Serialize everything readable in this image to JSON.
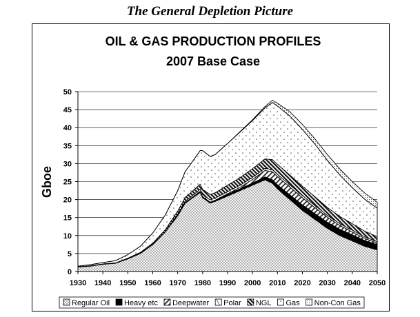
{
  "caption": "The General Depletion Picture",
  "chart_data": {
    "type": "area",
    "stacked": true,
    "title": "OIL & GAS PRODUCTION PROFILES",
    "subtitle": "2007 Base Case",
    "xlabel": "",
    "ylabel": "Gboe",
    "xlim": [
      1930,
      2050
    ],
    "ylim": [
      0,
      50
    ],
    "x_ticks": [
      "1930",
      "1940",
      "1950",
      "1960",
      "1970",
      "1980",
      "1990",
      "2000",
      "2010",
      "2020",
      "2030",
      "2040",
      "2050"
    ],
    "y_ticks": [
      "0",
      "5",
      "10",
      "15",
      "20",
      "25",
      "30",
      "35",
      "40",
      "45",
      "50"
    ],
    "grid": "horizontal",
    "legend_position": "bottom",
    "x": [
      1930,
      1935,
      1940,
      1945,
      1950,
      1955,
      1960,
      1965,
      1970,
      1973,
      1975,
      1979,
      1980,
      1983,
      1985,
      1990,
      1995,
      2000,
      2005,
      2008,
      2010,
      2015,
      2020,
      2025,
      2030,
      2035,
      2040,
      2045,
      2050
    ],
    "series": [
      {
        "name": "Regular Oil",
        "pattern": "dots",
        "values": [
          1.2,
          1.5,
          2.0,
          2.3,
          3.5,
          5.0,
          7.5,
          11.0,
          15.5,
          19.0,
          20.0,
          22.0,
          20.5,
          19.0,
          19.5,
          21.0,
          22.5,
          24.0,
          25.5,
          24.5,
          23.0,
          20.0,
          17.0,
          14.5,
          12.0,
          10.0,
          8.5,
          7.0,
          6.0
        ]
      },
      {
        "name": "Heavy etc",
        "pattern": "solid-black",
        "values": [
          0.1,
          0.1,
          0.1,
          0.1,
          0.1,
          0.1,
          0.1,
          0.1,
          0.2,
          0.2,
          0.2,
          0.3,
          0.3,
          0.3,
          0.3,
          0.4,
          0.5,
          0.6,
          0.8,
          1.0,
          1.1,
          1.3,
          1.5,
          1.6,
          1.7,
          1.7,
          1.7,
          1.6,
          1.5
        ]
      },
      {
        "name": "Deepwater",
        "pattern": "hatch",
        "values": [
          0,
          0,
          0,
          0,
          0,
          0,
          0,
          0,
          0,
          0,
          0,
          0,
          0,
          0,
          0,
          0.2,
          0.4,
          1.0,
          1.8,
          2.2,
          2.3,
          2.2,
          2.0,
          1.7,
          1.4,
          1.1,
          0.8,
          0.6,
          0.4
        ]
      },
      {
        "name": "Polar",
        "pattern": "light-hatch",
        "values": [
          0,
          0,
          0,
          0,
          0,
          0,
          0,
          0,
          0.2,
          0.3,
          0.4,
          0.6,
          0.6,
          0.6,
          0.6,
          0.6,
          0.6,
          0.6,
          0.6,
          0.6,
          0.6,
          0.6,
          0.6,
          0.6,
          0.5,
          0.5,
          0.5,
          0.4,
          0.4
        ]
      },
      {
        "name": "NGL",
        "pattern": "dense-hatch",
        "values": [
          0,
          0,
          0,
          0,
          0.1,
          0.2,
          0.3,
          0.5,
          0.9,
          1.1,
          1.2,
          1.4,
          1.4,
          1.5,
          1.5,
          1.8,
          2.1,
          2.4,
          2.6,
          2.8,
          2.8,
          2.7,
          2.6,
          2.4,
          2.2,
          2.0,
          1.8,
          1.6,
          1.4
        ]
      },
      {
        "name": "Gas",
        "pattern": "sparse-dots",
        "values": [
          0.2,
          0.3,
          0.4,
          0.6,
          1.0,
          1.7,
          2.8,
          4.1,
          5.7,
          7.2,
          7.9,
          9.3,
          10.8,
          10.6,
          10.6,
          11.6,
          12.7,
          13.4,
          14.2,
          15.9,
          16.2,
          16.4,
          15.8,
          14.6,
          13.1,
          11.5,
          10.0,
          8.9,
          7.9
        ]
      },
      {
        "name": "Non-Con Gas",
        "pattern": "fine-dots",
        "values": [
          0,
          0,
          0,
          0,
          0,
          0,
          0,
          0,
          0,
          0,
          0,
          0,
          0,
          0,
          0,
          0,
          0.1,
          0.2,
          0.4,
          0.6,
          0.8,
          1.2,
          1.4,
          1.5,
          1.6,
          1.7,
          1.7,
          1.7,
          1.7
        ]
      }
    ]
  }
}
